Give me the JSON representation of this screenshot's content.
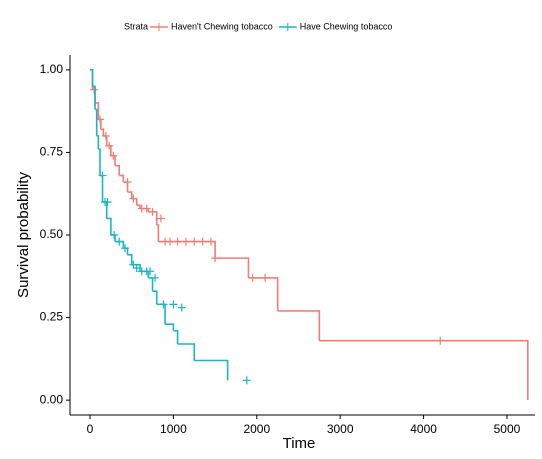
{
  "chart_data": {
    "type": "step",
    "x_label": "Time",
    "y_label": "Survival probability",
    "legend_title": "Strata",
    "xlim": [
      -240,
      5336
    ],
    "ylim": [
      -0.045,
      1.045
    ],
    "xticks": [
      0,
      1000,
      2000,
      3000,
      4000,
      5000
    ],
    "yticks": [
      {
        "value": 0,
        "label": "0.00"
      },
      {
        "value": 0.25,
        "label": "0.25"
      },
      {
        "value": 0.5,
        "label": "0.50"
      },
      {
        "value": 0.75,
        "label": "0.75"
      },
      {
        "value": 1,
        "label": "1.00"
      }
    ],
    "series": [
      {
        "name": "Haven't Chewing tobacco",
        "color": "#f07e74",
        "x": [
          0,
          30,
          60,
          100,
          130,
          160,
          200,
          250,
          300,
          350,
          400,
          450,
          500,
          560,
          600,
          700,
          800,
          820,
          1500,
          1900,
          2250,
          2750,
          5250
        ],
        "values": [
          1.0,
          0.94,
          0.9,
          0.85,
          0.82,
          0.8,
          0.77,
          0.74,
          0.71,
          0.68,
          0.66,
          0.63,
          0.61,
          0.59,
          0.58,
          0.57,
          0.53,
          0.48,
          0.43,
          0.37,
          0.27,
          0.18,
          0.0
        ],
        "censor_x": [
          50,
          120,
          190,
          230,
          280,
          450,
          520,
          620,
          680,
          750,
          850,
          900,
          960,
          1050,
          1150,
          1250,
          1350,
          1450,
          1500,
          1950,
          2100,
          4200
        ],
        "censor_y": [
          0.94,
          0.85,
          0.8,
          0.77,
          0.74,
          0.66,
          0.61,
          0.58,
          0.58,
          0.57,
          0.55,
          0.48,
          0.48,
          0.48,
          0.48,
          0.48,
          0.48,
          0.48,
          0.43,
          0.37,
          0.37,
          0.18
        ]
      },
      {
        "name": "Have Chewing tobacco",
        "color": "#1bb5c4",
        "x": [
          0,
          30,
          60,
          80,
          100,
          120,
          150,
          200,
          250,
          300,
          400,
          450,
          500,
          600,
          700,
          750,
          800,
          900,
          1000,
          1050,
          1250,
          1650
        ],
        "values": [
          1.0,
          0.95,
          0.88,
          0.8,
          0.76,
          0.68,
          0.6,
          0.55,
          0.5,
          0.48,
          0.46,
          0.44,
          0.41,
          0.39,
          0.37,
          0.33,
          0.29,
          0.23,
          0.21,
          0.17,
          0.12,
          0.06
        ],
        "censor_x": [
          150,
          180,
          210,
          290,
          350,
          420,
          520,
          560,
          620,
          680,
          720,
          780,
          880,
          1000,
          1100,
          1880
        ],
        "censor_y": [
          0.68,
          0.6,
          0.6,
          0.5,
          0.48,
          0.46,
          0.41,
          0.4,
          0.39,
          0.39,
          0.39,
          0.37,
          0.29,
          0.29,
          0.28,
          0.06
        ]
      }
    ]
  }
}
